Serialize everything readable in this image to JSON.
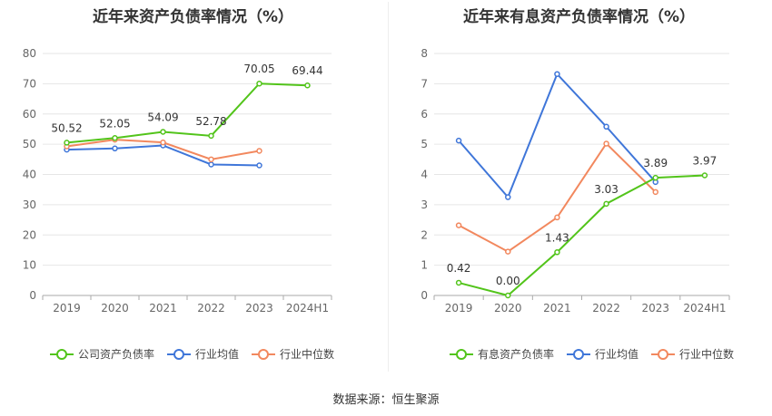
{
  "source_text": "数据来源：恒生聚源",
  "colors": {
    "company": "#52c41a",
    "average": "#3f76d9",
    "median": "#f2885e",
    "grid": "#e6e6e6",
    "axis": "#aaaaaa",
    "tick_text": "#666666",
    "label_text": "#333333"
  },
  "chart_data": [
    {
      "type": "line",
      "title": "近年来资产负债率情况（%）",
      "categories": [
        "2019",
        "2020",
        "2021",
        "2022",
        "2023",
        "2024H1"
      ],
      "ylim": [
        0,
        80
      ],
      "yticks": [
        0,
        10,
        20,
        30,
        40,
        50,
        60,
        70,
        80
      ],
      "grid": true,
      "legend_position": "bottom",
      "series": [
        {
          "name": "公司资产负债率",
          "color_key": "company",
          "values": [
            50.52,
            52.05,
            54.09,
            52.78,
            70.05,
            69.44
          ],
          "labels": [
            "50.52",
            "52.05",
            "54.09",
            "52.78",
            "70.05",
            "69.44"
          ]
        },
        {
          "name": "行业均值",
          "color_key": "average",
          "values": [
            48.2,
            48.6,
            49.6,
            43.3,
            43.0,
            null
          ]
        },
        {
          "name": "行业中位数",
          "color_key": "median",
          "values": [
            49.3,
            51.5,
            50.6,
            45.0,
            47.8,
            null
          ]
        }
      ]
    },
    {
      "type": "line",
      "title": "近年来有息资产负债率情况（%）",
      "categories": [
        "2019",
        "2020",
        "2021",
        "2022",
        "2023",
        "2024H1"
      ],
      "ylim": [
        0,
        8
      ],
      "yticks": [
        0,
        1,
        2,
        3,
        4,
        5,
        6,
        7,
        8
      ],
      "grid": true,
      "legend_position": "bottom",
      "series": [
        {
          "name": "有息资产负债率",
          "color_key": "company",
          "values": [
            0.42,
            0.0,
            1.43,
            3.03,
            3.89,
            3.97
          ],
          "labels": [
            "0.42",
            "0.00",
            "1.43",
            "3.03",
            "3.89",
            "3.97"
          ]
        },
        {
          "name": "行业均值",
          "color_key": "average",
          "values": [
            5.12,
            3.25,
            7.32,
            5.58,
            3.75,
            null
          ]
        },
        {
          "name": "行业中位数",
          "color_key": "median",
          "values": [
            2.32,
            1.45,
            2.58,
            5.02,
            3.42,
            null
          ]
        }
      ]
    }
  ]
}
